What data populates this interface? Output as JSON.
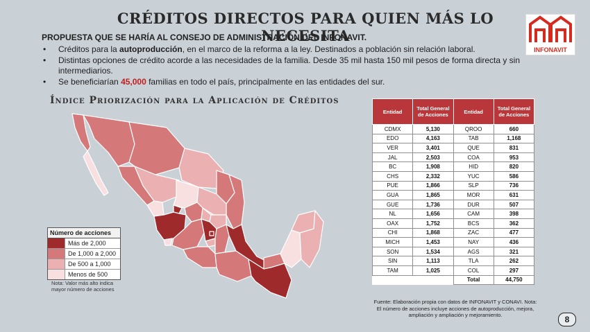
{
  "title": "CRÉDITOS DIRECTOS PARA QUIEN MÁS LO NECESITA",
  "logo": {
    "text": "INFONAVIT",
    "primary_color": "#d52b1e"
  },
  "proposal": "PROPUESTA QUE SE HARÍA AL CONSEJO DE ADMINISTRACIÓN DEL INFONAVIT.",
  "bullets": [
    {
      "pre": "Créditos para la ",
      "highlight": "autoproducción",
      "post": ", en el marco de la reforma a la ley. Destinados a población sin relación laboral."
    },
    {
      "pre": "Distintas opciones de crédito acorde a las necesidades de la familia. Desde 35 mil hasta 150 mil pesos de forma directa y sin intermediarios.",
      "highlight": "",
      "post": ""
    },
    {
      "pre": "Se beneficiarían ",
      "highlight": "45,000",
      "post": " familias en todo el país, principalmente en las entidades del sur."
    }
  ],
  "map_title": "Índice Priorización para la Aplicación de Créditos",
  "legend": {
    "title": "Número de acciones",
    "items": [
      {
        "label": "Más de 2,000",
        "color": "#9e2a2b"
      },
      {
        "label": "De 1,000 a 2,000",
        "color": "#d47879"
      },
      {
        "label": "De 500 a 1,000",
        "color": "#ebb0b1"
      },
      {
        "label": "Menos de 500",
        "color": "#f8dfe0"
      }
    ]
  },
  "note": "Nota: Valor más alto indica mayor número de acciones",
  "table": {
    "headers": [
      "Entidad",
      "Total General de Acciones",
      "Entidad",
      "Total General de Acciones"
    ],
    "rows": [
      [
        "CDMX",
        "5,130",
        "QROO",
        "660"
      ],
      [
        "EDO",
        "4,163",
        "TAB",
        "1,168"
      ],
      [
        "VER",
        "3,401",
        "QUE",
        "831"
      ],
      [
        "JAL",
        "2,503",
        "COA",
        "953"
      ],
      [
        "BC",
        "1,908",
        "HID",
        "820"
      ],
      [
        "CHS",
        "2,332",
        "YUC",
        "586"
      ],
      [
        "PUE",
        "1,866",
        "SLP",
        "736"
      ],
      [
        "GUA",
        "1,865",
        "MOR",
        "631"
      ],
      [
        "GUE",
        "1,736",
        "DUR",
        "507"
      ],
      [
        "NL",
        "1,656",
        "CAM",
        "398"
      ],
      [
        "OAX",
        "1,752",
        "BCS",
        "362"
      ],
      [
        "CHI",
        "1,868",
        "ZAC",
        "477"
      ],
      [
        "MICH",
        "1,453",
        "NAY",
        "436"
      ],
      [
        "SON",
        "1,534",
        "AGS",
        "321"
      ],
      [
        "SIN",
        "1,113",
        "TLA",
        "262"
      ],
      [
        "TAM",
        "1,025",
        "COL",
        "297"
      ]
    ],
    "total_label": "Total",
    "total_value": "44,750"
  },
  "source": "Fuente: Elaboración propia con datos de INFONAVIT y CONAVI. Nota: El número de acciones incluye acciones de autoproducción, mejora, ampliación y ampliación y mejoramiento.",
  "page_number": "8"
}
